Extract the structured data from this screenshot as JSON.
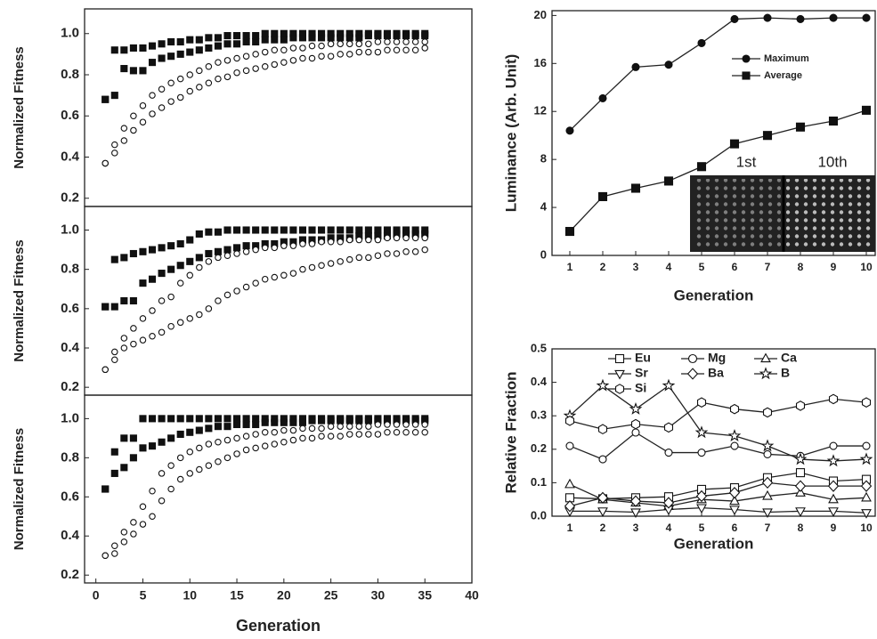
{
  "chart_data": [
    {
      "type": "scatter",
      "y_label": "Normalized Fitness",
      "xlim": [
        -1.2,
        40
      ],
      "ylim": [
        0.16,
        1.12
      ],
      "yticks": [
        0.2,
        0.4,
        0.6,
        0.8,
        {
          "value": 1.0,
          "label": "1.0"
        }
      ],
      "x": [
        1,
        2,
        3,
        4,
        5,
        6,
        7,
        8,
        9,
        10,
        11,
        12,
        13,
        14,
        15,
        16,
        17,
        18,
        19,
        20,
        21,
        22,
        23,
        24,
        25,
        26,
        27,
        28,
        29,
        30,
        31,
        32,
        33,
        34,
        35
      ],
      "series": [
        {
          "marker": "square",
          "filled": true,
          "values": [
            0.68,
            0.92,
            0.92,
            0.93,
            0.93,
            0.94,
            0.95,
            0.96,
            0.96,
            0.97,
            0.97,
            0.98,
            0.98,
            0.99,
            0.99,
            0.99,
            0.99,
            1,
            1,
            1,
            1,
            1,
            1,
            1,
            1,
            1,
            1,
            1,
            1,
            1,
            1,
            1,
            1,
            1,
            1
          ]
        },
        {
          "marker": "square",
          "filled": true,
          "values": [
            0.68,
            0.7,
            0.83,
            0.82,
            0.82,
            0.86,
            0.88,
            0.89,
            0.9,
            0.91,
            0.92,
            0.93,
            0.94,
            0.95,
            0.95,
            0.96,
            0.96,
            0.97,
            0.97,
            0.97,
            0.98,
            0.98,
            0.98,
            0.98,
            0.98,
            0.98,
            0.98,
            0.98,
            0.99,
            0.99,
            0.99,
            0.99,
            0.99,
            0.99,
            0.99
          ]
        },
        {
          "marker": "circle",
          "filled": false,
          "values": [
            0.37,
            0.46,
            0.54,
            0.6,
            0.65,
            0.7,
            0.73,
            0.76,
            0.78,
            0.8,
            0.82,
            0.84,
            0.86,
            0.87,
            0.88,
            0.89,
            0.9,
            0.91,
            0.92,
            0.92,
            0.93,
            0.93,
            0.94,
            0.94,
            0.95,
            0.95,
            0.95,
            0.95,
            0.95,
            0.96,
            0.96,
            0.96,
            0.96,
            0.96,
            0.96
          ]
        },
        {
          "marker": "circle",
          "filled": false,
          "values": [
            0.37,
            0.42,
            0.48,
            0.53,
            0.57,
            0.61,
            0.64,
            0.67,
            0.69,
            0.72,
            0.74,
            0.76,
            0.78,
            0.79,
            0.81,
            0.82,
            0.83,
            0.84,
            0.85,
            0.86,
            0.87,
            0.88,
            0.88,
            0.89,
            0.89,
            0.9,
            0.9,
            0.91,
            0.91,
            0.91,
            0.92,
            0.92,
            0.92,
            0.92,
            0.93
          ]
        }
      ]
    },
    {
      "type": "scatter",
      "y_label": "Normalized Fitness",
      "xlim": [
        -1.2,
        40
      ],
      "ylim": [
        0.16,
        1.12
      ],
      "yticks": [
        0.2,
        0.4,
        0.6,
        0.8,
        {
          "value": 1.0,
          "label": "1.0"
        }
      ],
      "x": [
        1,
        2,
        3,
        4,
        5,
        6,
        7,
        8,
        9,
        10,
        11,
        12,
        13,
        14,
        15,
        16,
        17,
        18,
        19,
        20,
        21,
        22,
        23,
        24,
        25,
        26,
        27,
        28,
        29,
        30,
        31,
        32,
        33,
        34,
        35
      ],
      "series": [
        {
          "marker": "square",
          "filled": true,
          "values": [
            0.61,
            0.85,
            0.86,
            0.88,
            0.89,
            0.9,
            0.91,
            0.92,
            0.93,
            0.95,
            0.98,
            0.99,
            0.99,
            1,
            1,
            1,
            1,
            1,
            1,
            1,
            1,
            1,
            1,
            1,
            1,
            1,
            1,
            1,
            1,
            1,
            1,
            1,
            1,
            1,
            1
          ]
        },
        {
          "marker": "square",
          "filled": true,
          "values": [
            0.61,
            0.61,
            0.64,
            0.64,
            0.73,
            0.75,
            0.78,
            0.8,
            0.82,
            0.84,
            0.86,
            0.88,
            0.89,
            0.9,
            0.91,
            0.92,
            0.92,
            0.93,
            0.93,
            0.94,
            0.94,
            0.95,
            0.95,
            0.95,
            0.96,
            0.96,
            0.96,
            0.97,
            0.97,
            0.97,
            0.97,
            0.98,
            0.98,
            0.98,
            0.98
          ]
        },
        {
          "marker": "circle",
          "filled": false,
          "values": [
            0.29,
            0.38,
            0.45,
            0.5,
            0.55,
            0.59,
            0.64,
            0.66,
            0.73,
            0.77,
            0.81,
            0.84,
            0.86,
            0.87,
            0.88,
            0.89,
            0.9,
            0.91,
            0.91,
            0.92,
            0.92,
            0.93,
            0.93,
            0.94,
            0.94,
            0.94,
            0.95,
            0.95,
            0.95,
            0.95,
            0.96,
            0.96,
            0.96,
            0.96,
            0.96
          ]
        },
        {
          "marker": "circle",
          "filled": false,
          "values": [
            0.29,
            0.34,
            0.4,
            0.42,
            0.44,
            0.46,
            0.48,
            0.51,
            0.53,
            0.55,
            0.57,
            0.6,
            0.64,
            0.67,
            0.69,
            0.71,
            0.73,
            0.75,
            0.76,
            0.77,
            0.78,
            0.8,
            0.81,
            0.82,
            0.83,
            0.84,
            0.85,
            0.86,
            0.86,
            0.87,
            0.88,
            0.88,
            0.89,
            0.89,
            0.9
          ]
        }
      ]
    },
    {
      "type": "scatter",
      "y_label": "Normalized Fitness",
      "x_label": "Generation",
      "xlim": [
        -1.2,
        40
      ],
      "ylim": [
        0.16,
        1.12
      ],
      "xticks": [
        0,
        5,
        10,
        15,
        20,
        25,
        30,
        35,
        40
      ],
      "yticks": [
        0.2,
        0.4,
        0.6,
        0.8,
        {
          "value": 1.0,
          "label": "1.0"
        }
      ],
      "x": [
        1,
        2,
        3,
        4,
        5,
        6,
        7,
        8,
        9,
        10,
        11,
        12,
        13,
        14,
        15,
        16,
        17,
        18,
        19,
        20,
        21,
        22,
        23,
        24,
        25,
        26,
        27,
        28,
        29,
        30,
        31,
        32,
        33,
        34,
        35
      ],
      "series": [
        {
          "marker": "square",
          "filled": true,
          "values": [
            0.64,
            0.83,
            0.9,
            0.9,
            1,
            1,
            1,
            1,
            1,
            1,
            1,
            1,
            1,
            1,
            1,
            1,
            1,
            1,
            1,
            1,
            1,
            1,
            1,
            1,
            1,
            1,
            1,
            1,
            1,
            1,
            1,
            1,
            1,
            1,
            1
          ]
        },
        {
          "marker": "square",
          "filled": true,
          "values": [
            0.64,
            0.72,
            0.75,
            0.8,
            0.85,
            0.86,
            0.88,
            0.9,
            0.92,
            0.93,
            0.94,
            0.95,
            0.96,
            0.96,
            0.97,
            0.97,
            0.97,
            0.98,
            0.98,
            0.98,
            0.98,
            0.98,
            0.99,
            0.99,
            0.99,
            0.99,
            0.99,
            0.99,
            0.99,
            0.99,
            0.99,
            0.99,
            0.99,
            0.99,
            0.99
          ]
        },
        {
          "marker": "circle",
          "filled": false,
          "values": [
            0.3,
            0.35,
            0.42,
            0.47,
            0.55,
            0.63,
            0.72,
            0.76,
            0.8,
            0.83,
            0.85,
            0.87,
            0.88,
            0.89,
            0.9,
            0.91,
            0.92,
            0.93,
            0.93,
            0.94,
            0.94,
            0.95,
            0.95,
            0.95,
            0.96,
            0.96,
            0.96,
            0.96,
            0.96,
            0.97,
            0.97,
            0.97,
            0.97,
            0.97,
            0.97
          ]
        },
        {
          "marker": "circle",
          "filled": false,
          "values": [
            0.3,
            0.31,
            0.37,
            0.41,
            0.46,
            0.5,
            0.58,
            0.64,
            0.69,
            0.72,
            0.74,
            0.76,
            0.78,
            0.8,
            0.82,
            0.84,
            0.85,
            0.86,
            0.87,
            0.88,
            0.89,
            0.9,
            0.9,
            0.91,
            0.91,
            0.91,
            0.92,
            0.92,
            0.92,
            0.92,
            0.93,
            0.93,
            0.93,
            0.93,
            0.93
          ]
        }
      ]
    },
    {
      "type": "line",
      "y_label": "Luminance (Arb. Unit)",
      "x_label": "Generation",
      "xlim": [
        0.46,
        10.27
      ],
      "ylim": [
        0,
        20.4
      ],
      "xticks": [
        1,
        2,
        3,
        4,
        5,
        6,
        7,
        8,
        9,
        10
      ],
      "yticks": [
        0,
        4,
        8,
        12,
        16,
        20
      ],
      "annotations": [
        "1st",
        "10th"
      ],
      "x": [
        1,
        2,
        3,
        4,
        5,
        6,
        7,
        8,
        9,
        10
      ],
      "series": [
        {
          "name": "Maximum",
          "marker": "circle",
          "filled": true,
          "values": [
            10.4,
            13.1,
            15.7,
            15.9,
            17.7,
            19.7,
            19.8,
            19.7,
            19.8,
            19.8
          ]
        },
        {
          "name": "Average",
          "marker": "square",
          "filled": true,
          "values": [
            2.0,
            4.9,
            5.6,
            6.2,
            7.4,
            9.3,
            10.0,
            10.7,
            11.2,
            12.1
          ]
        }
      ]
    },
    {
      "type": "line",
      "y_label": "Relative Fraction",
      "x_label": "Generation",
      "xlim": [
        0.46,
        10.27
      ],
      "ylim": [
        0,
        0.5
      ],
      "xticks": [
        1,
        2,
        3,
        4,
        5,
        6,
        7,
        8,
        9,
        10
      ],
      "yticks": [
        {
          "value": 0,
          "label": "0.0"
        },
        0.1,
        0.2,
        0.3,
        0.4,
        0.5
      ],
      "x": [
        1,
        2,
        3,
        4,
        5,
        6,
        7,
        8,
        9,
        10
      ],
      "series": [
        {
          "name": "Eu",
          "marker": "square",
          "filled": false,
          "values": [
            0.055,
            0.052,
            0.055,
            0.058,
            0.08,
            0.085,
            0.115,
            0.13,
            0.105,
            0.11
          ]
        },
        {
          "name": "Mg",
          "marker": "circle",
          "filled": false,
          "values": [
            0.21,
            0.17,
            0.25,
            0.19,
            0.19,
            0.21,
            0.185,
            0.18,
            0.21,
            0.21
          ]
        },
        {
          "name": "Ca",
          "marker": "triangle",
          "filled": false,
          "values": [
            0.095,
            0.05,
            0.04,
            0.03,
            0.05,
            0.045,
            0.06,
            0.07,
            0.05,
            0.055
          ]
        },
        {
          "name": "Sr",
          "marker": "down-triangle",
          "filled": false,
          "values": [
            0.015,
            0.015,
            0.012,
            0.02,
            0.025,
            0.02,
            0.012,
            0.015,
            0.015,
            0.01
          ]
        },
        {
          "name": "Ba",
          "marker": "diamond",
          "filled": false,
          "values": [
            0.03,
            0.055,
            0.045,
            0.04,
            0.06,
            0.07,
            0.1,
            0.09,
            0.09,
            0.09
          ]
        },
        {
          "name": "B",
          "marker": "star",
          "filled": false,
          "values": [
            0.3,
            0.39,
            0.32,
            0.39,
            0.25,
            0.24,
            0.21,
            0.17,
            0.165,
            0.17
          ]
        },
        {
          "name": "Si",
          "marker": "hexagon",
          "filled": false,
          "values": [
            0.285,
            0.26,
            0.275,
            0.265,
            0.34,
            0.32,
            0.31,
            0.33,
            0.35,
            0.34
          ]
        }
      ]
    }
  ]
}
